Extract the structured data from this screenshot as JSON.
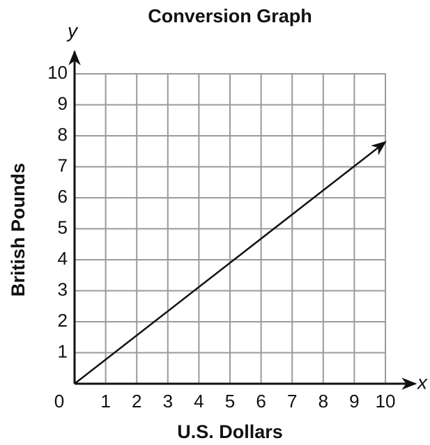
{
  "chart_data": {
    "type": "line",
    "title": "Conversion Graph",
    "x_label": "U.S. Dollars",
    "y_label": "British Pounds",
    "x_axis_name": "x",
    "y_axis_name": "y",
    "x": [
      0,
      10
    ],
    "values": [
      0,
      7.8
    ],
    "color": "#111111",
    "xlim": [
      0,
      10
    ],
    "ylim": [
      0,
      10
    ],
    "xticks": [
      0,
      1,
      2,
      3,
      4,
      5,
      6,
      7,
      8,
      9,
      10
    ],
    "yticks": [
      1,
      2,
      3,
      4,
      5,
      6,
      7,
      8,
      9,
      10
    ],
    "grid": true
  }
}
